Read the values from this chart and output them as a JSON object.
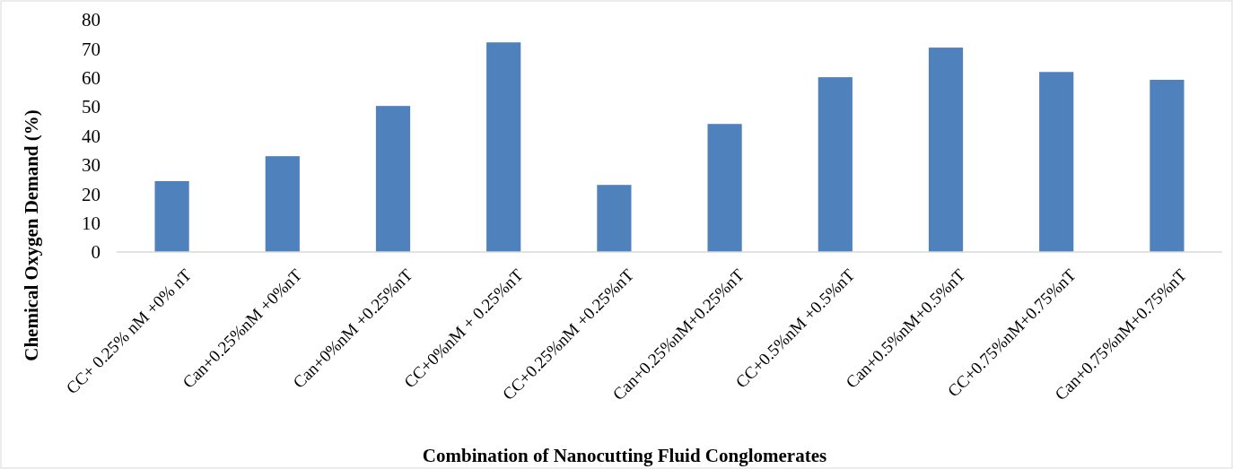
{
  "chart_data": {
    "type": "bar",
    "xlabel": "Combination of Nanocutting Fluid Conglomerates",
    "ylabel": "Chemical Oxygen Demand (%)",
    "categories": [
      "CC+ 0.25% nM +0% nT",
      "Can+0.25%nM +0%nT",
      "Can+0%nM +0.25%nT",
      "CC+0%nM + 0.25%nT",
      "CC+0.25%nM +0.25%nT",
      "Can+0.25%nM+0.25%nT",
      "CC+0.5%nM +0.5%nT",
      "Can+0.5%nM+0.5%nT",
      "CC+0.75%nM+0.75%nT",
      "Can+0.75%nM+0.75%nT"
    ],
    "values": [
      24.4,
      33,
      50.3,
      72.2,
      23.1,
      44.1,
      60.2,
      70.4,
      62,
      59.3
    ],
    "color": "#4f81bd",
    "ylim": [
      0,
      80
    ],
    "yticks": [
      0,
      10,
      20,
      30,
      40,
      50,
      60,
      70,
      80
    ],
    "grid": false
  }
}
